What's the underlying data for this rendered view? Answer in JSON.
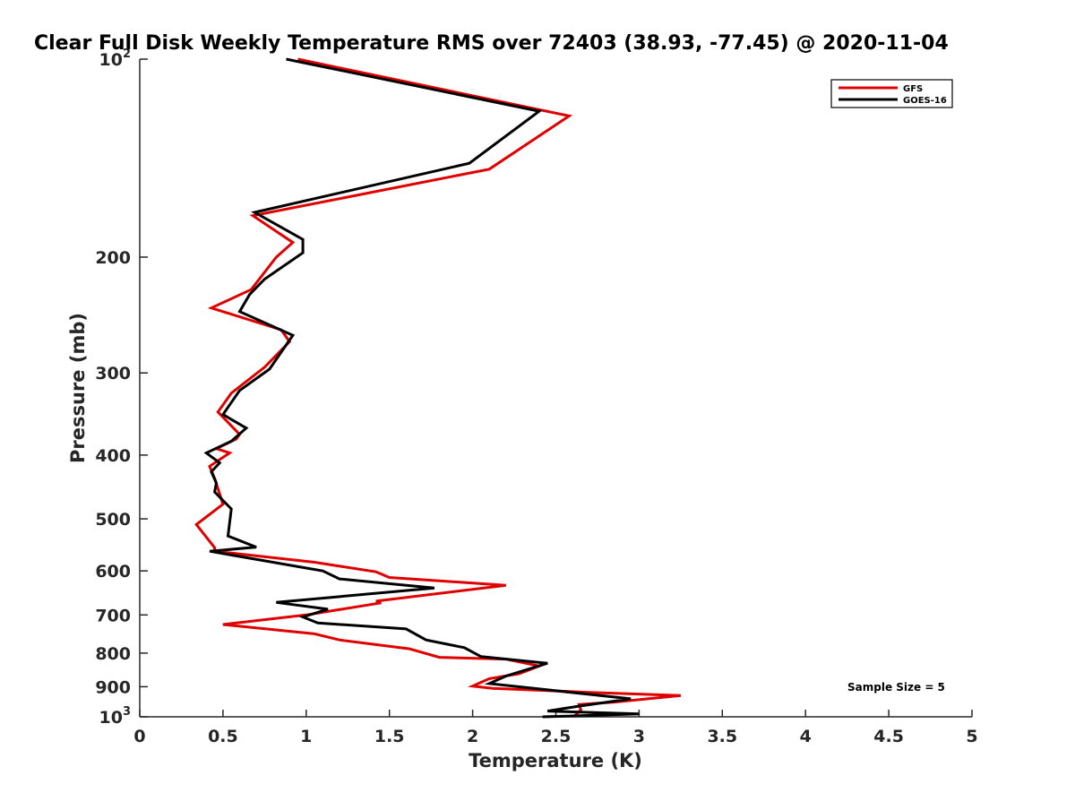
{
  "chart_data": {
    "type": "line",
    "title": "Clear Full Disk Weekly Temperature RMS over 72403 (38.93, -77.45) @ 2020-11-04",
    "xlabel": "Temperature (K)",
    "ylabel": "Pressure (mb)",
    "xlim": [
      0,
      5
    ],
    "ylim": [
      100,
      1000
    ],
    "y_scale": "log",
    "y_reversed": true,
    "grid": false,
    "legend_position": "top-right",
    "x_ticks": [
      {
        "value": 0,
        "label": "0"
      },
      {
        "value": 0.5,
        "label": "0.5"
      },
      {
        "value": 1,
        "label": "1"
      },
      {
        "value": 1.5,
        "label": "1.5"
      },
      {
        "value": 2,
        "label": "2"
      },
      {
        "value": 2.5,
        "label": "2.5"
      },
      {
        "value": 3,
        "label": "3"
      },
      {
        "value": 3.5,
        "label": "3.5"
      },
      {
        "value": 4,
        "label": "4"
      },
      {
        "value": 4.5,
        "label": "4.5"
      },
      {
        "value": 5,
        "label": "5"
      }
    ],
    "y_ticks": [
      {
        "value": 100,
        "label": "10",
        "sup": "2"
      },
      {
        "value": 200,
        "label": "200"
      },
      {
        "value": 300,
        "label": "300"
      },
      {
        "value": 400,
        "label": "400"
      },
      {
        "value": 500,
        "label": "500"
      },
      {
        "value": 600,
        "label": "600"
      },
      {
        "value": 700,
        "label": "700"
      },
      {
        "value": 800,
        "label": "800"
      },
      {
        "value": 900,
        "label": "900"
      },
      {
        "value": 1000,
        "label": "10",
        "sup": "3"
      }
    ],
    "annotation": "Sample Size = 5",
    "series": [
      {
        "name": "GFS",
        "color": "#e00000",
        "points": [
          [
            0.95,
            100
          ],
          [
            2.58,
            122
          ],
          [
            2.1,
            147
          ],
          [
            0.68,
            173
          ],
          [
            0.92,
            190
          ],
          [
            0.82,
            200
          ],
          [
            0.67,
            224
          ],
          [
            0.43,
            239
          ],
          [
            0.85,
            258
          ],
          [
            0.9,
            269
          ],
          [
            0.75,
            294
          ],
          [
            0.55,
            322
          ],
          [
            0.47,
            344
          ],
          [
            0.6,
            372
          ],
          [
            0.58,
            378
          ],
          [
            0.46,
            391
          ],
          [
            0.54,
            397
          ],
          [
            0.42,
            416
          ],
          [
            0.45,
            434
          ],
          [
            0.5,
            475
          ],
          [
            0.34,
            510
          ],
          [
            0.45,
            553
          ],
          [
            0.45,
            560
          ],
          [
            1.05,
            582
          ],
          [
            1.42,
            602
          ],
          [
            1.5,
            614
          ],
          [
            2.2,
            631
          ],
          [
            1.42,
            667
          ],
          [
            1.45,
            671
          ],
          [
            1.0,
            700
          ],
          [
            0.5,
            724
          ],
          [
            1.05,
            748
          ],
          [
            1.2,
            764
          ],
          [
            1.62,
            788
          ],
          [
            1.8,
            812
          ],
          [
            2.2,
            817
          ],
          [
            2.4,
            837
          ],
          [
            2.28,
            860
          ],
          [
            2.1,
            875
          ],
          [
            2.0,
            898
          ],
          [
            2.12,
            905
          ],
          [
            2.7,
            918
          ],
          [
            3.25,
            928
          ],
          [
            2.85,
            950
          ],
          [
            2.64,
            958
          ],
          [
            2.65,
            976
          ],
          [
            2.62,
            993
          ],
          [
            2.6,
            1000
          ]
        ]
      },
      {
        "name": "GOES-16",
        "color": "#000000",
        "points": [
          [
            0.88,
            100
          ],
          [
            2.4,
            120
          ],
          [
            1.98,
            144
          ],
          [
            0.69,
            171
          ],
          [
            0.98,
            188
          ],
          [
            0.98,
            197
          ],
          [
            0.75,
            216
          ],
          [
            0.66,
            228
          ],
          [
            0.6,
            242
          ],
          [
            0.92,
            263
          ],
          [
            0.78,
            296
          ],
          [
            0.6,
            319
          ],
          [
            0.5,
            347
          ],
          [
            0.64,
            364
          ],
          [
            0.55,
            381
          ],
          [
            0.4,
            397
          ],
          [
            0.48,
            411
          ],
          [
            0.43,
            424
          ],
          [
            0.46,
            441
          ],
          [
            0.45,
            455
          ],
          [
            0.55,
            483
          ],
          [
            0.53,
            531
          ],
          [
            0.7,
            552
          ],
          [
            0.42,
            560
          ],
          [
            1.1,
            600
          ],
          [
            1.2,
            617
          ],
          [
            1.77,
            637
          ],
          [
            0.82,
            670
          ],
          [
            1.13,
            686
          ],
          [
            0.98,
            705
          ],
          [
            1.07,
            720
          ],
          [
            1.6,
            735
          ],
          [
            1.72,
            764
          ],
          [
            1.95,
            785
          ],
          [
            2.05,
            810
          ],
          [
            2.45,
            829
          ],
          [
            2.2,
            867
          ],
          [
            2.1,
            890
          ],
          [
            2.95,
            939
          ],
          [
            2.62,
            965
          ],
          [
            2.45,
            980
          ],
          [
            3.0,
            990
          ],
          [
            2.42,
            1000
          ]
        ]
      }
    ]
  }
}
